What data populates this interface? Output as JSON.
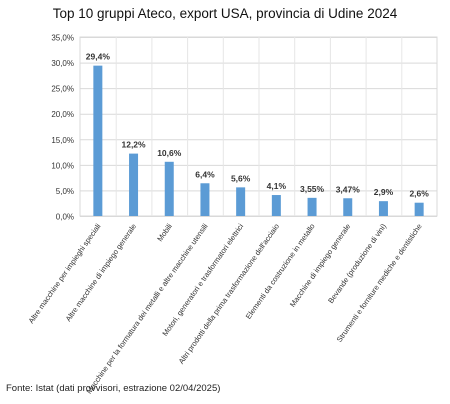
{
  "chart_data": {
    "type": "bar",
    "title": "Top 10 gruppi Ateco, export USA, provincia di Udine 2024",
    "xlabel": "",
    "ylabel": "",
    "categories": [
      "Altre macchine per impieghi speciali",
      "Altre macchine di impiego generale",
      "Mobili",
      "Macchine per la formatura dei metalli e altre macchine utensili",
      "Motori, generatori e trasformatori elettrici",
      "Altri prodotti della prima trasformazione dell'acciaio",
      "Elementi da costruzione in metallo",
      "Macchine di impiego generale",
      "Bevande (produzione di vini)",
      "Strumenti e forniture mediche e dentistiche"
    ],
    "values": [
      29.4,
      12.2,
      10.6,
      6.4,
      5.6,
      4.1,
      3.55,
      3.47,
      2.9,
      2.6
    ],
    "value_labels": [
      "29,4%",
      "12,2%",
      "10,6%",
      "6,4%",
      "5,6%",
      "4,1%",
      "3,55%",
      "3,47%",
      "2,9%",
      "2,6%"
    ],
    "ylim": [
      0,
      35
    ],
    "yticks": [
      0,
      5,
      10,
      15,
      20,
      25,
      30,
      35
    ],
    "ytick_labels": [
      "0,0%",
      "5,0%",
      "10,0%",
      "15,0%",
      "20,0%",
      "25,0%",
      "30,0%",
      "35,0%"
    ],
    "grid": true,
    "legend": "none",
    "bar_color": "#5b9bd5"
  },
  "source": "Fonte: Istat (dati provvisori, estrazione 02/04/2025)"
}
